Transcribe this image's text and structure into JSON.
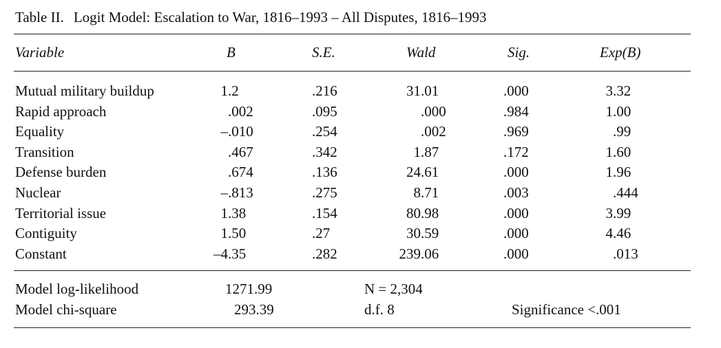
{
  "caption": {
    "label": "Table II.",
    "title": "Logit Model: Escalation to War, 1816–1993 – All Disputes, 1816–1993"
  },
  "headers": [
    "Variable",
    "B",
    "S.E.",
    "Wald",
    "Sig.",
    "Exp(B)"
  ],
  "rows": [
    {
      "variable": "Mutual military buildup",
      "b": "1.2",
      "se": ".216",
      "wald": "31.01",
      "sig": ".000",
      "expb": "3.32"
    },
    {
      "variable": "Rapid approach",
      "b": ".002",
      "se": ".095",
      "wald": ".000",
      "sig": ".984",
      "expb": "1.00"
    },
    {
      "variable": "Equality",
      "b": "–.010",
      "se": ".254",
      "wald": ".002",
      "sig": ".969",
      "expb": ".99"
    },
    {
      "variable": "Transition",
      "b": ".467",
      "se": ".342",
      "wald": "1.87",
      "sig": ".172",
      "expb": "1.60"
    },
    {
      "variable": "Defense burden",
      "b": ".674",
      "se": ".136",
      "wald": "24.61",
      "sig": ".000",
      "expb": "1.96"
    },
    {
      "variable": "Nuclear",
      "b": "–.813",
      "se": ".275",
      "wald": "8.71",
      "sig": ".003",
      "expb": ".444"
    },
    {
      "variable": "Territorial issue",
      "b": "1.38",
      "se": ".154",
      "wald": "80.98",
      "sig": ".000",
      "expb": "3.99"
    },
    {
      "variable": "Contiguity",
      "b": "1.50",
      "se": ".27",
      "wald": "30.59",
      "sig": ".000",
      "expb": "4.46"
    },
    {
      "variable": "Constant",
      "b": "–4.35",
      "se": ".282",
      "wald": "239.06",
      "sig": ".000",
      "expb": ".013"
    }
  ],
  "footer": {
    "loglik_label": "Model log-likelihood",
    "loglik_value": "1271.99",
    "n": "N = 2,304",
    "chisq_label": "Model chi-square",
    "chisq_value": "293.39",
    "df": "d.f. 8",
    "significance": "Significance <.001"
  }
}
